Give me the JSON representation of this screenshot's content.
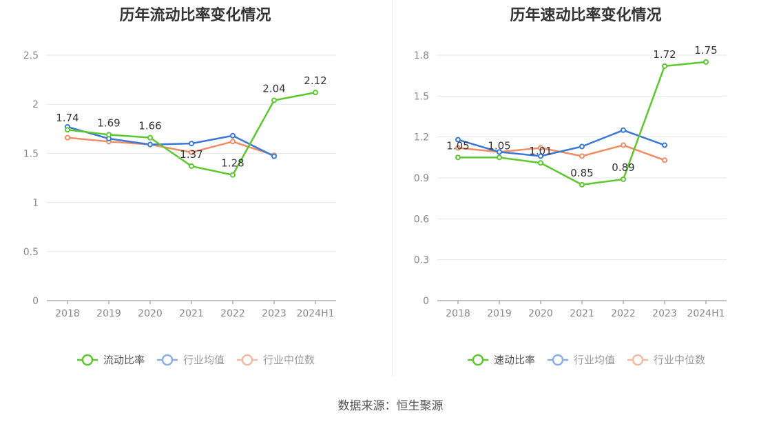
{
  "source_label": "数据来源：恒生聚源",
  "colors": {
    "main": "#5cc82e",
    "avg": "#3a78d8",
    "median": "#f08c64",
    "grid": "#e6e6e6",
    "axis": "#888888"
  },
  "chart_data": [
    {
      "type": "line",
      "title": "历年流动比率变化情况",
      "categories": [
        "2018",
        "2019",
        "2020",
        "2021",
        "2022",
        "2023",
        "2024H1"
      ],
      "ylim": [
        0,
        2.5
      ],
      "yticks": [
        0,
        0.5,
        1,
        1.5,
        2,
        2.5
      ],
      "ytick_labels": [
        "0",
        "0.5",
        "1",
        "1.5",
        "2",
        "2.5"
      ],
      "grid": true,
      "legend_position": "bottom",
      "series": [
        {
          "name": "流动比率",
          "color": "#5cc82e",
          "values": [
            1.74,
            1.69,
            1.66,
            1.37,
            1.28,
            2.04,
            2.12
          ],
          "labels": [
            "1.74",
            "1.69",
            "1.66",
            "1.37",
            "1.28",
            "2.04",
            "2.12"
          ]
        },
        {
          "name": "行业均值",
          "color": "#3a78d8",
          "values": [
            1.77,
            1.65,
            1.59,
            1.6,
            1.68,
            1.47,
            null
          ]
        },
        {
          "name": "行业中位数",
          "color": "#f08c64",
          "values": [
            1.66,
            1.62,
            1.59,
            1.51,
            1.62,
            1.48,
            null
          ]
        }
      ]
    },
    {
      "type": "line",
      "title": "历年速动比率变化情况",
      "categories": [
        "2018",
        "2019",
        "2020",
        "2021",
        "2022",
        "2023",
        "2024H1"
      ],
      "ylim": [
        0,
        1.8
      ],
      "yticks": [
        0,
        0.3,
        0.6,
        0.9,
        1.2,
        1.5,
        1.8
      ],
      "ytick_labels": [
        "0",
        "0.3",
        "0.6",
        "0.9",
        "1.2",
        "1.5",
        "1.8"
      ],
      "grid": true,
      "legend_position": "bottom",
      "series": [
        {
          "name": "速动比率",
          "color": "#5cc82e",
          "values": [
            1.05,
            1.05,
            1.01,
            0.85,
            0.89,
            1.72,
            1.75
          ],
          "labels": [
            "1.05",
            "1.05",
            "1.01",
            "0.85",
            "0.89",
            "1.72",
            "1.75"
          ]
        },
        {
          "name": "行业均值",
          "color": "#3a78d8",
          "values": [
            1.18,
            1.09,
            1.06,
            1.13,
            1.25,
            1.14,
            null
          ]
        },
        {
          "name": "行业中位数",
          "color": "#f08c64",
          "values": [
            1.12,
            1.09,
            1.12,
            1.06,
            1.14,
            1.03,
            null
          ]
        }
      ]
    }
  ]
}
